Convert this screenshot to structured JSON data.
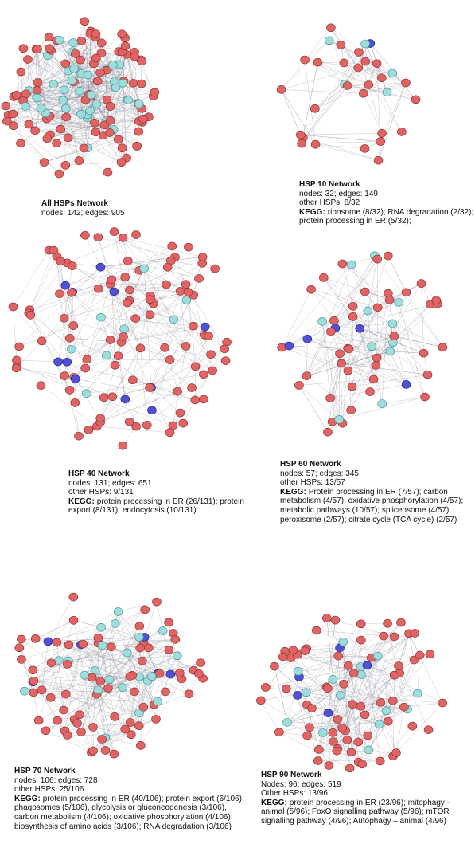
{
  "panels": [
    {
      "title": "All HSPs Network",
      "lines": [
        "nodes: 142; edges: 905"
      ]
    },
    {
      "title": "HSP 10 Network",
      "lines": [
        "nodes: 32; edges: 149",
        "other HSPs: 8/32"
      ],
      "kegg_label": "KEGG:",
      "kegg": "ribosome (8/32); RNA degradation (2/32); protein processing in ER (5/32);"
    },
    {
      "title": "HSP 40 Network",
      "lines": [
        "nodes: 131; edges: 651",
        "other HSPs: 9/131"
      ],
      "kegg_label": "KEGG:",
      "kegg": "protein processing in ER (26/131); protein export (8/131); endocytosis (10/131)"
    },
    {
      "title": "HSP 60 Network",
      "lines": [
        "nodes: 57; edges: 345",
        "other HSPs: 13/57"
      ],
      "kegg_label": "KEGG:",
      "kegg": "Protein processing in ER (7/57); carbon metabolism (4/57); oxidative phosphorylation (4/57); metabolic pathways (10/57); spliceosome (4/57); peroxisome (2/57); citrate cycle (TCA cycle) (2/57)"
    },
    {
      "title": "HSP 70 Network",
      "lines": [
        "nodes: 106; edges: 728",
        "other HSPs: 25/106"
      ],
      "kegg_label": "KEGG:",
      "kegg": "protein processing in ER (40/106); protein export (6/106); phagosomes (5/106), glycolysis or gluconeogenesis (3/106), carbon metabolism (4/106); oxidative phosphorylation (4/106); biosynthesis of amino acids (3/106); RNA degradation (3/106)"
    },
    {
      "title": "HSP 90 Network",
      "lines": [
        "Nodes: 96; edges: 519",
        "Other HSPs: 13/96"
      ],
      "kegg_label": "KEGG:",
      "kegg": "protein processing in ER (23/96); mitophagy - animal (5/96); FoxO signalling pathway (5/96); mTOR signalling pathway (4/96); Autophagy – animal (4/96)"
    }
  ]
}
